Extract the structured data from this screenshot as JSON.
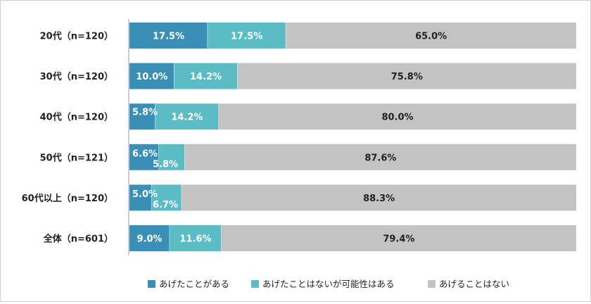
{
  "chart_data": {
    "type": "bar",
    "orientation": "horizontal",
    "stacked": true,
    "percent_stacked": true,
    "categories": [
      "20代（n=120）",
      "30代（n=120）",
      "40代（n=120）",
      "50代（n=121）",
      "60代以上（n=120）",
      "全体（n=601）"
    ],
    "series": [
      {
        "name": "あげたことがある",
        "color": "#3a8fb7",
        "values": [
          17.5,
          10.0,
          5.8,
          6.6,
          5.0,
          9.0
        ],
        "labels": [
          "17.5%",
          "10.0%",
          "5.8%",
          "6.6%",
          "5.0%",
          "9.0%"
        ],
        "label_color": "#ffffff"
      },
      {
        "name": "あげたことはないが可能性はある",
        "color": "#5bbcc6",
        "values": [
          17.5,
          14.2,
          14.2,
          5.8,
          6.7,
          11.6
        ],
        "labels": [
          "17.5%",
          "14.2%",
          "14.2%",
          "5.8%",
          "6.7%",
          "11.6%"
        ],
        "label_color": "#ffffff"
      },
      {
        "name": "あげることはない",
        "color": "#c3c3c3",
        "values": [
          65.0,
          75.8,
          80.0,
          87.6,
          88.3,
          79.4
        ],
        "labels": [
          "65.0%",
          "75.8%",
          "80.0%",
          "87.6%",
          "88.3%",
          "79.4%"
        ],
        "label_color": "#222222"
      }
    ],
    "xlim": [
      0,
      100
    ],
    "grid": false,
    "legend_position": "bottom"
  }
}
